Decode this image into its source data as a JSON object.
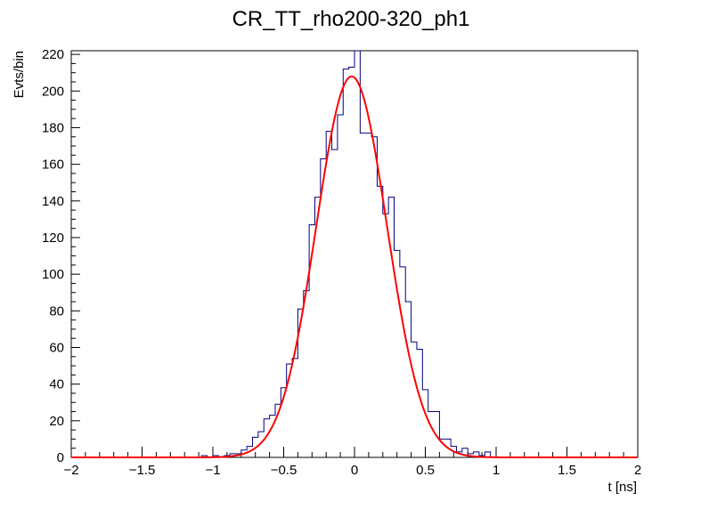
{
  "chart_data": {
    "type": "histogram",
    "title": "CR_TT_rho200-320_ph1",
    "xlabel": "t [ns]",
    "ylabel": "Evts/bin",
    "xlim": [
      -2,
      2
    ],
    "ylim": [
      0,
      222
    ],
    "xticks": [
      -2,
      -1.5,
      -1,
      -0.5,
      0,
      0.5,
      1,
      1.5,
      2
    ],
    "xtick_labels": [
      "−2",
      "−1.5",
      "−1",
      "−0.5",
      "0",
      "0.5",
      "1",
      "1.5",
      "2"
    ],
    "yticks": [
      0,
      20,
      40,
      60,
      80,
      100,
      120,
      140,
      160,
      180,
      200,
      220
    ],
    "ytick_labels": [
      "0",
      "20",
      "40",
      "60",
      "80",
      "100",
      "120",
      "140",
      "160",
      "180",
      "200",
      "220"
    ],
    "bin_width": 0.04,
    "series": [
      {
        "kind": "histogram",
        "color": "#00007f",
        "bins": [
          {
            "x0": -1.08,
            "x1": -1.04,
            "y": 1
          },
          {
            "x0": -1.04,
            "x1": -1.0,
            "y": 0
          },
          {
            "x0": -1.0,
            "x1": -0.96,
            "y": 1
          },
          {
            "x0": -0.96,
            "x1": -0.92,
            "y": 0
          },
          {
            "x0": -0.92,
            "x1": -0.88,
            "y": 1
          },
          {
            "x0": -0.88,
            "x1": -0.84,
            "y": 2
          },
          {
            "x0": -0.84,
            "x1": -0.8,
            "y": 2
          },
          {
            "x0": -0.8,
            "x1": -0.76,
            "y": 4
          },
          {
            "x0": -0.76,
            "x1": -0.72,
            "y": 6
          },
          {
            "x0": -0.72,
            "x1": -0.68,
            "y": 11
          },
          {
            "x0": -0.68,
            "x1": -0.64,
            "y": 14
          },
          {
            "x0": -0.64,
            "x1": -0.6,
            "y": 21
          },
          {
            "x0": -0.6,
            "x1": -0.56,
            "y": 23
          },
          {
            "x0": -0.56,
            "x1": -0.52,
            "y": 29
          },
          {
            "x0": -0.52,
            "x1": -0.48,
            "y": 38
          },
          {
            "x0": -0.48,
            "x1": -0.44,
            "y": 51
          },
          {
            "x0": -0.44,
            "x1": -0.4,
            "y": 54
          },
          {
            "x0": -0.4,
            "x1": -0.36,
            "y": 81
          },
          {
            "x0": -0.36,
            "x1": -0.32,
            "y": 91
          },
          {
            "x0": -0.32,
            "x1": -0.28,
            "y": 127
          },
          {
            "x0": -0.28,
            "x1": -0.24,
            "y": 142
          },
          {
            "x0": -0.24,
            "x1": -0.2,
            "y": 163
          },
          {
            "x0": -0.2,
            "x1": -0.16,
            "y": 178
          },
          {
            "x0": -0.16,
            "x1": -0.12,
            "y": 168
          },
          {
            "x0": -0.12,
            "x1": -0.08,
            "y": 187
          },
          {
            "x0": -0.08,
            "x1": -0.04,
            "y": 212
          },
          {
            "x0": -0.04,
            "x1": 0.0,
            "y": 213
          },
          {
            "x0": 0.0,
            "x1": 0.04,
            "y": 223
          },
          {
            "x0": 0.04,
            "x1": 0.08,
            "y": 177
          },
          {
            "x0": 0.08,
            "x1": 0.12,
            "y": 177
          },
          {
            "x0": 0.12,
            "x1": 0.16,
            "y": 175
          },
          {
            "x0": 0.16,
            "x1": 0.2,
            "y": 148
          },
          {
            "x0": 0.2,
            "x1": 0.24,
            "y": 133
          },
          {
            "x0": 0.24,
            "x1": 0.28,
            "y": 142
          },
          {
            "x0": 0.28,
            "x1": 0.32,
            "y": 113
          },
          {
            "x0": 0.32,
            "x1": 0.36,
            "y": 104
          },
          {
            "x0": 0.36,
            "x1": 0.4,
            "y": 85
          },
          {
            "x0": 0.4,
            "x1": 0.44,
            "y": 63
          },
          {
            "x0": 0.44,
            "x1": 0.48,
            "y": 59
          },
          {
            "x0": 0.48,
            "x1": 0.52,
            "y": 37
          },
          {
            "x0": 0.52,
            "x1": 0.56,
            "y": 25
          },
          {
            "x0": 0.56,
            "x1": 0.6,
            "y": 25
          },
          {
            "x0": 0.6,
            "x1": 0.64,
            "y": 10
          },
          {
            "x0": 0.64,
            "x1": 0.68,
            "y": 10
          },
          {
            "x0": 0.68,
            "x1": 0.72,
            "y": 6
          },
          {
            "x0": 0.72,
            "x1": 0.76,
            "y": 3
          },
          {
            "x0": 0.76,
            "x1": 0.8,
            "y": 5
          },
          {
            "x0": 0.8,
            "x1": 0.84,
            "y": 2
          },
          {
            "x0": 0.84,
            "x1": 0.88,
            "y": 3
          },
          {
            "x0": 0.88,
            "x1": 0.92,
            "y": 1
          },
          {
            "x0": 0.92,
            "x1": 0.96,
            "y": 3
          },
          {
            "x0": 0.96,
            "x1": 1.0,
            "y": 0
          }
        ]
      },
      {
        "kind": "gaussian-fit",
        "color": "#ff0000",
        "amplitude": 208,
        "mean": -0.02,
        "sigma": 0.25,
        "range": [
          -2,
          2
        ]
      }
    ],
    "grid": false,
    "legend": "none"
  }
}
